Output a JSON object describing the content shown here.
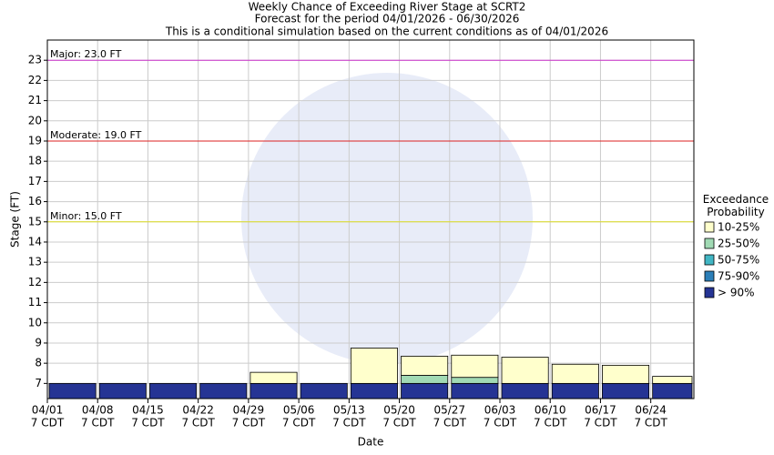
{
  "chart_data": {
    "type": "bar",
    "title": "Weekly Chance of Exceeding River Stage at SCRT2",
    "subtitle": "Forecast for the period 04/01/2026 - 06/30/2026",
    "note": "This is a conditional simulation based on the current conditions as of 04/01/2026",
    "x_label": "Date",
    "y_label": "Stage (FT)",
    "categories": [
      "04/01",
      "04/08",
      "04/15",
      "04/22",
      "04/29",
      "05/06",
      "05/13",
      "05/20",
      "05/27",
      "06/03",
      "06/10",
      "06/17",
      "06/24"
    ],
    "time_label": "7 CDT",
    "xlim": [
      "04/01",
      "06/30"
    ],
    "ylim": [
      6.25,
      24
    ],
    "yticks": [
      7,
      8,
      9,
      10,
      11,
      12,
      13,
      14,
      15,
      16,
      17,
      18,
      19,
      20,
      21,
      22,
      23
    ],
    "grid": true,
    "legend_title": "Exceedance Probability",
    "series": [
      {
        "name": "> 90%",
        "color": "#253494",
        "values": [
          7.0,
          7.0,
          7.0,
          7.0,
          7.0,
          7.0,
          7.0,
          7.0,
          7.0,
          7.0,
          7.0,
          7.0,
          7.0
        ]
      },
      {
        "name": "75-90%",
        "color": "#2c7fb8",
        "values": [
          7.0,
          7.0,
          7.0,
          7.0,
          7.0,
          7.0,
          7.0,
          7.0,
          7.0,
          7.0,
          7.0,
          7.0,
          7.0
        ]
      },
      {
        "name": "50-75%",
        "color": "#41b6c4",
        "values": [
          7.0,
          7.0,
          7.0,
          7.0,
          7.0,
          7.0,
          7.0,
          7.0,
          7.0,
          7.0,
          7.0,
          7.0,
          7.0
        ]
      },
      {
        "name": "25-50%",
        "color": "#a1dab4",
        "values": [
          7.0,
          7.0,
          7.0,
          7.0,
          7.0,
          7.0,
          7.0,
          7.4,
          7.3,
          7.0,
          7.0,
          7.0,
          7.0
        ]
      },
      {
        "name": "10-25%",
        "color": "#ffffcc",
        "values": [
          7.0,
          7.0,
          7.0,
          7.0,
          7.55,
          7.0,
          8.75,
          8.35,
          8.4,
          8.3,
          7.95,
          7.9,
          7.35
        ]
      }
    ],
    "thresholds": [
      {
        "label": "Major: 23.0 FT",
        "value": 23,
        "color": "#cc33cc"
      },
      {
        "label": "Moderate: 19.0 FT",
        "value": 19,
        "color": "#dd2222"
      },
      {
        "label": "Minor: 15.0 FT",
        "value": 15,
        "color": "#dddd22"
      }
    ]
  }
}
